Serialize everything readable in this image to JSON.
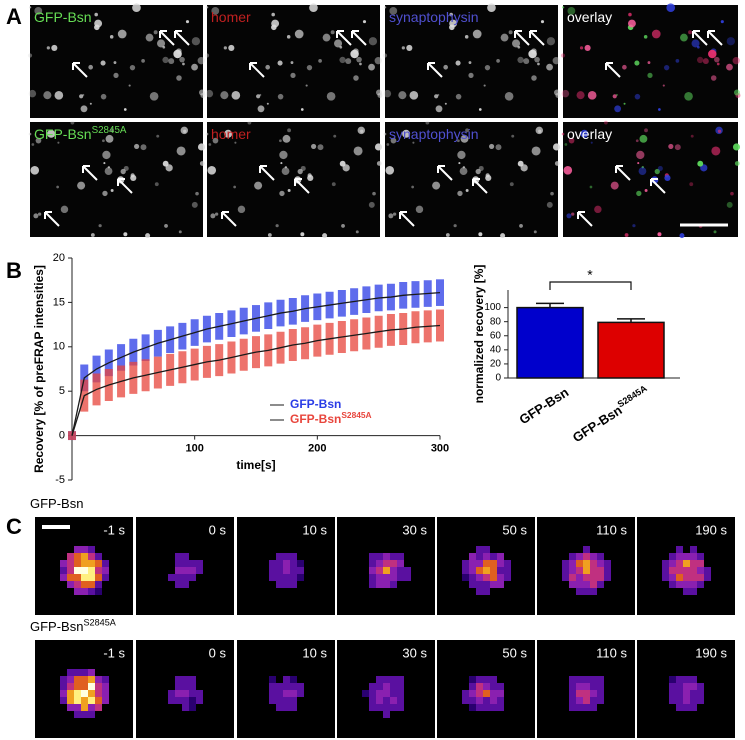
{
  "panel_a": {
    "label": "A",
    "row1": [
      "GFP-Bsn",
      "homer",
      "synaptophysin",
      "overlay"
    ],
    "row2": [
      "GFP-Bsn",
      "homer",
      "synaptophysin",
      "overlay"
    ],
    "row2_sup": "S2845A",
    "label_colors": [
      "#66dd55",
      "#c02020",
      "#5050d0",
      "#ffffff"
    ]
  },
  "panel_b": {
    "label": "B"
  },
  "chart_data": [
    {
      "type": "line",
      "ylabel": "Recovery [% of preFRAP intensities]",
      "xlabel": "time[s]",
      "x": [
        0,
        10,
        20,
        30,
        40,
        50,
        60,
        70,
        80,
        90,
        100,
        110,
        120,
        130,
        140,
        150,
        160,
        170,
        180,
        190,
        200,
        210,
        220,
        230,
        240,
        250,
        260,
        270,
        280,
        290,
        300
      ],
      "series": [
        {
          "name": "GFP-Bsn",
          "color": "#2a3ce6",
          "values": [
            0,
            6.5,
            7.5,
            8.2,
            8.8,
            9.4,
            9.9,
            10.4,
            10.8,
            11.2,
            11.6,
            12.0,
            12.3,
            12.6,
            12.9,
            13.2,
            13.5,
            13.8,
            14.0,
            14.3,
            14.5,
            14.7,
            14.9,
            15.1,
            15.3,
            15.5,
            15.6,
            15.8,
            15.9,
            16.0,
            16.1
          ],
          "errors": [
            0.5,
            1.5,
            1.5,
            1.5,
            1.5,
            1.5,
            1.5,
            1.5,
            1.5,
            1.5,
            1.5,
            1.5,
            1.5,
            1.5,
            1.5,
            1.5,
            1.5,
            1.5,
            1.5,
            1.5,
            1.5,
            1.5,
            1.5,
            1.5,
            1.5,
            1.5,
            1.5,
            1.5,
            1.5,
            1.5,
            1.5
          ]
        },
        {
          "name": "GFP-Bsn",
          "name_sup": "S2845A",
          "color": "#e8453c",
          "values": [
            0,
            4.5,
            5.2,
            5.7,
            6.1,
            6.5,
            6.8,
            7.1,
            7.4,
            7.7,
            8.0,
            8.3,
            8.5,
            8.8,
            9.1,
            9.4,
            9.6,
            9.9,
            10.2,
            10.4,
            10.7,
            10.9,
            11.1,
            11.3,
            11.5,
            11.7,
            11.9,
            12.0,
            12.2,
            12.3,
            12.4
          ],
          "errors": [
            0.5,
            1.8,
            1.8,
            1.8,
            1.8,
            1.8,
            1.8,
            1.8,
            1.8,
            1.8,
            1.8,
            1.8,
            1.8,
            1.8,
            1.8,
            1.8,
            1.8,
            1.8,
            1.8,
            1.8,
            1.8,
            1.8,
            1.8,
            1.8,
            1.8,
            1.8,
            1.8,
            1.8,
            1.8,
            1.8,
            1.8
          ]
        }
      ],
      "fit_color": "#1a1a1a",
      "xlim": [
        0,
        300
      ],
      "ylim": [
        -5,
        20
      ],
      "xticks": [
        100,
        200,
        300
      ],
      "yticks": [
        -5,
        0,
        5,
        10,
        15,
        20
      ],
      "legend": "lower right"
    },
    {
      "type": "bar",
      "ylabel": "normalized recovery [%]",
      "categories": [
        {
          "text": "GFP-Bsn"
        },
        {
          "text": "GFP-Bsn",
          "sup": "S2845A"
        }
      ],
      "values": [
        100,
        79
      ],
      "errors": [
        6,
        5
      ],
      "colors": [
        "#0000cc",
        "#dd0000"
      ],
      "ylim": [
        0,
        125
      ],
      "yticks": [
        0,
        20,
        40,
        60,
        80,
        100
      ],
      "annotation": "*"
    }
  ],
  "panel_c": {
    "label": "C",
    "row1": "GFP-Bsn",
    "row2": "GFP-Bsn",
    "row2_sup": "S2845A",
    "times": [
      "-1 s",
      "0 s",
      "10 s",
      "30 s",
      "50 s",
      "110 s",
      "190 s"
    ]
  }
}
